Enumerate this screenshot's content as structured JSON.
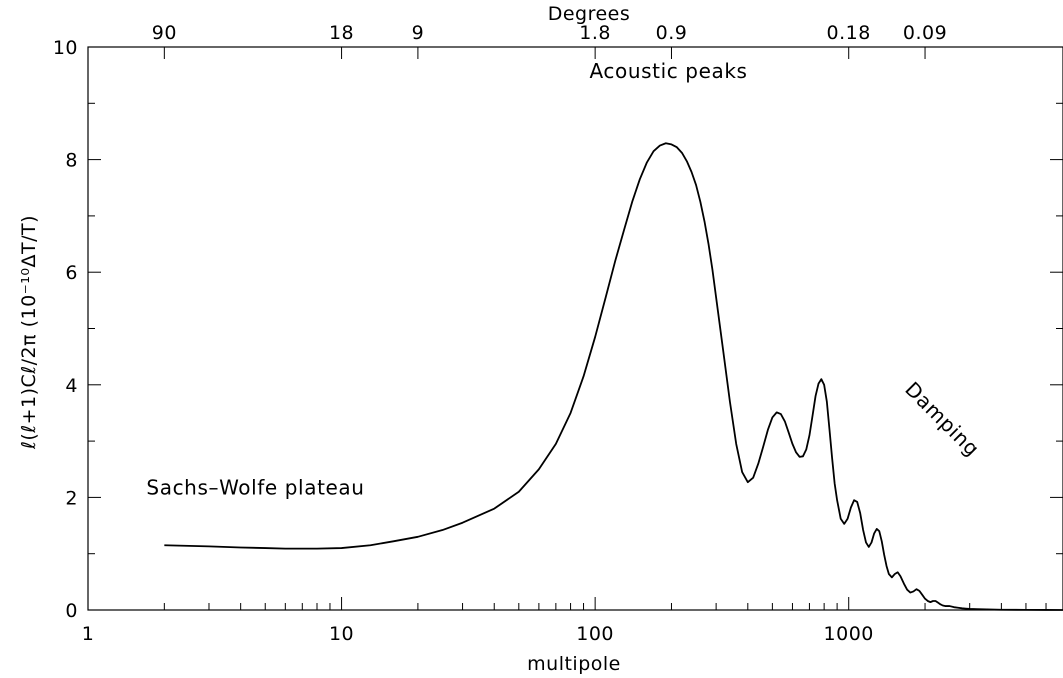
{
  "chart_data": {
    "type": "line",
    "xscale": "log",
    "xlim": [
      1,
      7000
    ],
    "ylim": [
      0,
      10
    ],
    "xlabel": "multipole",
    "ylabel": "ℓ(ℓ+1)Cℓ/2π (10⁻¹⁰ΔT/T)",
    "top_axis_label": "Degrees",
    "grid": false,
    "x_ticks": [
      {
        "value": 1,
        "label": "1"
      },
      {
        "value": 10,
        "label": "10"
      },
      {
        "value": 100,
        "label": "100"
      },
      {
        "value": 1000,
        "label": "1000"
      }
    ],
    "y_ticks": [
      {
        "value": 0,
        "label": "0"
      },
      {
        "value": 2,
        "label": "2"
      },
      {
        "value": 4,
        "label": "4"
      },
      {
        "value": 6,
        "label": "6"
      },
      {
        "value": 8,
        "label": "8"
      },
      {
        "value": 10,
        "label": "10"
      }
    ],
    "top_ticks": [
      {
        "value": 2,
        "label": "90"
      },
      {
        "value": 10,
        "label": "18"
      },
      {
        "value": 20,
        "label": "9"
      },
      {
        "value": 100,
        "label": "1.8"
      },
      {
        "value": 200,
        "label": "0.9"
      },
      {
        "value": 1000,
        "label": "0.18"
      },
      {
        "value": 2000,
        "label": "0.09"
      }
    ],
    "annotations": [
      {
        "text": "Sachs–Wolfe plateau",
        "x": 1.7,
        "y": 2.05,
        "rotation": 0
      },
      {
        "text": "Acoustic peaks",
        "x": 95,
        "y": 9.45,
        "rotation": 0
      },
      {
        "text": "Damping",
        "x": 1650,
        "y": 3.9,
        "rotation": 45
      }
    ],
    "series": [
      {
        "x": [
          2,
          3,
          4,
          5,
          6,
          7,
          8,
          10,
          13,
          16,
          20,
          25,
          30,
          40,
          50,
          60,
          70,
          80,
          90,
          100,
          110,
          120,
          130,
          140,
          150,
          160,
          170,
          180,
          190,
          200,
          210,
          220,
          230,
          240,
          250,
          260,
          270,
          280,
          290,
          300,
          320,
          340,
          360,
          380,
          400,
          420,
          440,
          460,
          480,
          500,
          520,
          540,
          560,
          580,
          600,
          620,
          640,
          660,
          680,
          700,
          720,
          740,
          760,
          780,
          800,
          820,
          840,
          860,
          880,
          900,
          930,
          960,
          990,
          1020,
          1050,
          1080,
          1110,
          1140,
          1170,
          1200,
          1230,
          1260,
          1290,
          1320,
          1350,
          1380,
          1410,
          1440,
          1480,
          1520,
          1560,
          1600,
          1650,
          1700,
          1750,
          1800,
          1850,
          1900,
          1950,
          2000,
          2050,
          2100,
          2150,
          2200,
          2250,
          2300,
          2350,
          2400,
          2450,
          2500,
          2600,
          2700,
          2800,
          2900,
          3000,
          3200,
          3500,
          4000,
          5000,
          6000,
          7000
        ],
        "y": [
          1.15,
          1.13,
          1.11,
          1.1,
          1.09,
          1.09,
          1.09,
          1.1,
          1.15,
          1.22,
          1.3,
          1.42,
          1.55,
          1.8,
          2.1,
          2.5,
          2.95,
          3.5,
          4.15,
          4.85,
          5.55,
          6.2,
          6.75,
          7.25,
          7.65,
          7.95,
          8.15,
          8.25,
          8.29,
          8.27,
          8.22,
          8.12,
          7.97,
          7.78,
          7.55,
          7.25,
          6.9,
          6.5,
          6.05,
          5.55,
          4.6,
          3.7,
          2.95,
          2.45,
          2.27,
          2.35,
          2.6,
          2.9,
          3.2,
          3.42,
          3.51,
          3.48,
          3.35,
          3.15,
          2.95,
          2.8,
          2.72,
          2.73,
          2.85,
          3.1,
          3.45,
          3.8,
          4.02,
          4.1,
          4.0,
          3.7,
          3.2,
          2.7,
          2.25,
          1.95,
          1.62,
          1.53,
          1.62,
          1.82,
          1.95,
          1.92,
          1.72,
          1.42,
          1.2,
          1.12,
          1.2,
          1.36,
          1.44,
          1.4,
          1.22,
          0.98,
          0.78,
          0.64,
          0.58,
          0.64,
          0.67,
          0.6,
          0.47,
          0.36,
          0.31,
          0.33,
          0.37,
          0.34,
          0.27,
          0.2,
          0.16,
          0.14,
          0.16,
          0.16,
          0.13,
          0.1,
          0.08,
          0.07,
          0.07,
          0.07,
          0.05,
          0.04,
          0.03,
          0.025,
          0.02,
          0.015,
          0.01,
          0.005,
          0.002,
          0.001,
          0.0
        ]
      }
    ]
  }
}
